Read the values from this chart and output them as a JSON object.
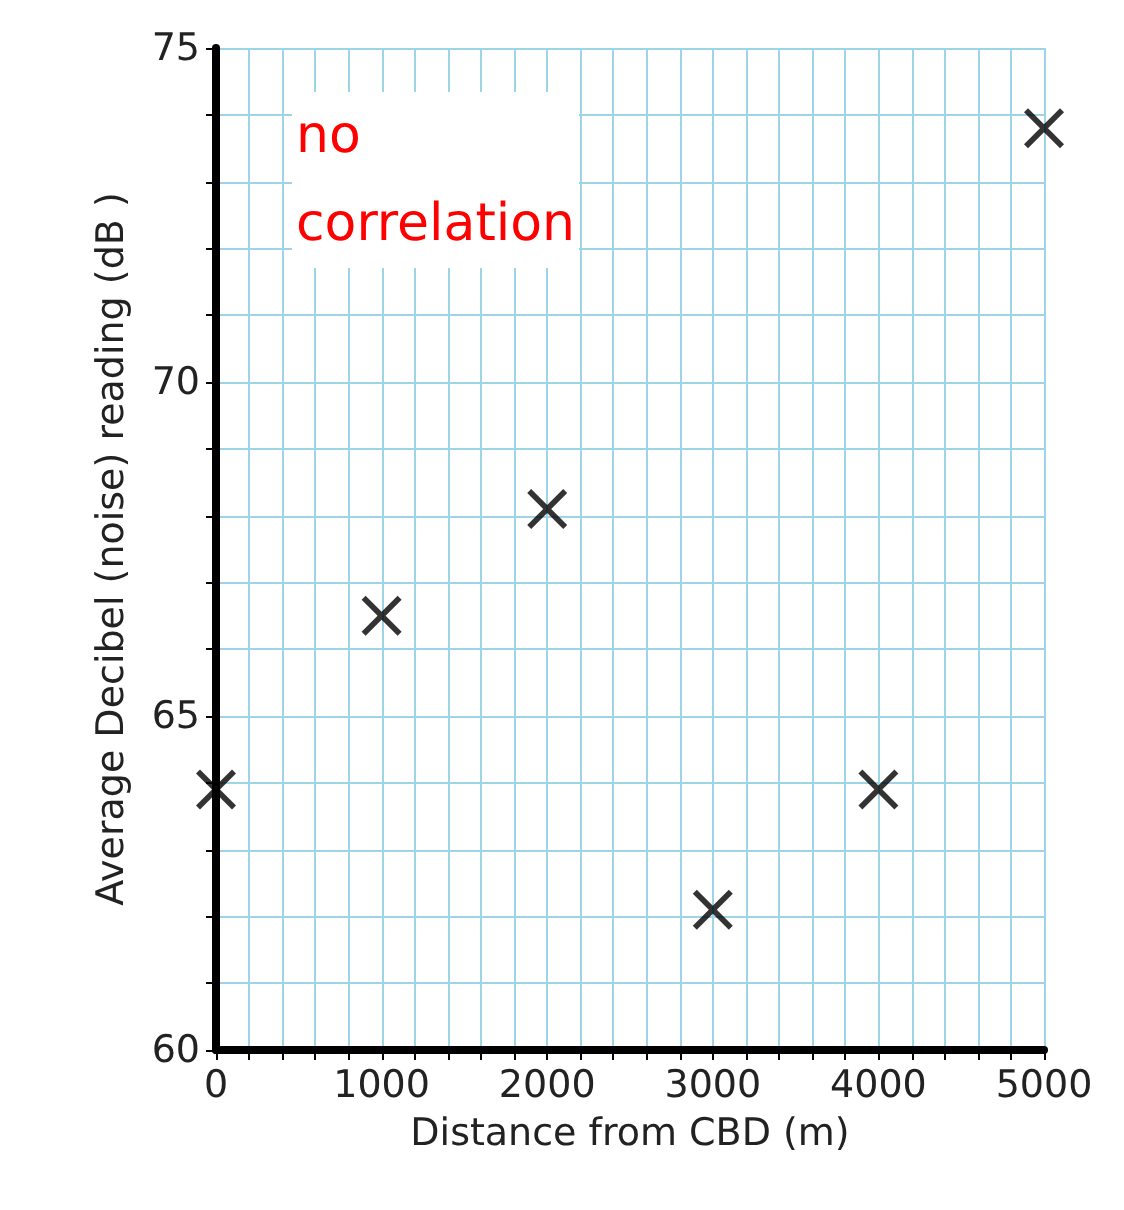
{
  "chart_data": {
    "type": "scatter",
    "xlabel": "Distance from CBD (m)",
    "ylabel": "Average Decibel (noise) reading (dB )",
    "x": [
      0,
      1000,
      2000,
      3000,
      4000,
      5000
    ],
    "values": [
      63.9,
      66.5,
      68.1,
      62.1,
      63.9,
      73.8
    ],
    "color": "#000000",
    "marker": "cross",
    "xlim": [
      0,
      5000
    ],
    "xticks": [
      0,
      {
        "value": 200,
        "label": null
      },
      {
        "value": 400,
        "label": null
      },
      {
        "value": 600,
        "label": null
      },
      {
        "value": 800,
        "label": null
      },
      1000,
      {
        "value": 1200,
        "label": null
      },
      {
        "value": 1400,
        "label": null
      },
      {
        "value": 1600,
        "label": null
      },
      {
        "value": 1800,
        "label": null
      },
      2000,
      {
        "value": 2200,
        "label": null
      },
      {
        "value": 2400,
        "label": null
      },
      {
        "value": 2600,
        "label": null
      },
      {
        "value": 2800,
        "label": null
      },
      3000,
      {
        "value": 3200,
        "label": null
      },
      {
        "value": 3400,
        "label": null
      },
      {
        "value": 3600,
        "label": null
      },
      {
        "value": 3800,
        "label": null
      },
      4000,
      {
        "value": 4200,
        "label": null
      },
      {
        "value": 4400,
        "label": null
      },
      {
        "value": 4600,
        "label": null
      },
      {
        "value": 4800,
        "label": null
      },
      5000
    ],
    "ylim": [
      60,
      75
    ],
    "yticks": [
      60,
      {
        "value": 61,
        "label": null
      },
      {
        "value": 62,
        "label": null
      },
      {
        "value": 63,
        "label": null
      },
      {
        "value": 64,
        "label": null
      },
      65,
      {
        "value": 66,
        "label": null
      },
      {
        "value": 67,
        "label": null
      },
      {
        "value": 68,
        "label": null
      },
      {
        "value": 69,
        "label": null
      },
      70,
      {
        "value": 71,
        "label": null
      },
      {
        "value": 72,
        "label": null
      },
      {
        "value": 73,
        "label": null
      },
      {
        "value": 74,
        "label": null
      },
      75
    ],
    "grid": true,
    "annotations": [
      "no correlation"
    ]
  }
}
